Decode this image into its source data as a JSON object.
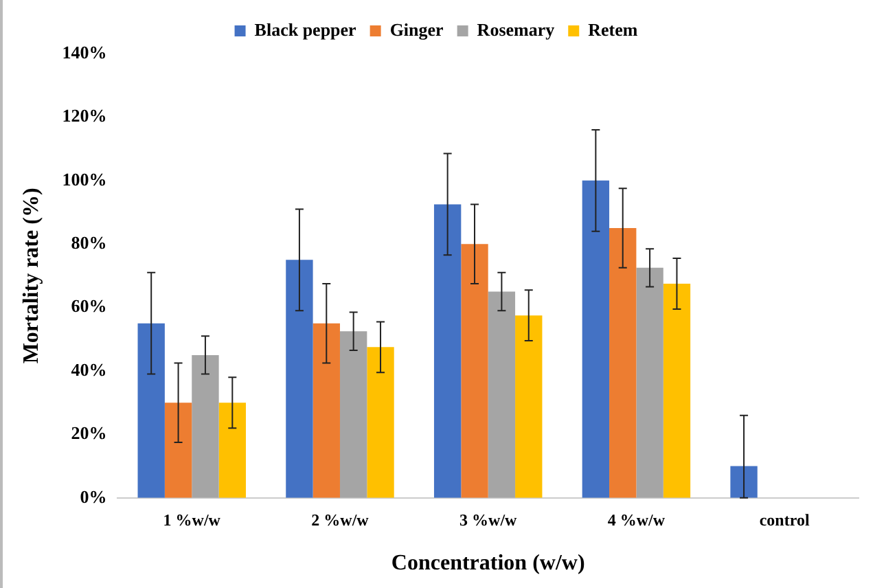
{
  "chart_data": {
    "type": "bar",
    "xlabel": "Concentration (w/w)",
    "ylabel": "Mortality rate (%)",
    "categories": [
      "1 %w/w",
      "2 %w/w",
      "3 %w/w",
      "4 %w/w",
      "control"
    ],
    "series": [
      {
        "name": "Black pepper",
        "color": "#4472c4",
        "values": [
          55,
          75,
          92.5,
          100,
          10
        ],
        "errors": [
          16,
          16,
          16,
          16,
          [
            0,
            26
          ]
        ]
      },
      {
        "name": "Ginger",
        "color": "#ed7d31",
        "values": [
          30,
          55,
          80,
          85,
          null
        ],
        "errors": [
          12.5,
          12.5,
          12.5,
          12.5,
          null
        ]
      },
      {
        "name": "Rosemary",
        "color": "#a5a5a5",
        "values": [
          45,
          52.5,
          65,
          72.5,
          null
        ],
        "errors": [
          6,
          6,
          6,
          6,
          null
        ]
      },
      {
        "name": "Retem",
        "color": "#ffc000",
        "values": [
          30,
          47.5,
          57.5,
          67.5,
          null
        ],
        "errors": [
          8,
          8,
          8,
          8,
          null
        ]
      }
    ],
    "ylim": [
      0,
      140
    ],
    "yticks": [
      {
        "value": 0,
        "label": "0%"
      },
      {
        "value": 20,
        "label": "20%"
      },
      {
        "value": 40,
        "label": "40%"
      },
      {
        "value": 60,
        "label": "60%"
      },
      {
        "value": 80,
        "label": "80%"
      },
      {
        "value": 100,
        "label": "100%"
      },
      {
        "value": 120,
        "label": "120%"
      },
      {
        "value": 140,
        "label": "140%"
      }
    ],
    "grid": false,
    "legend": "top"
  }
}
